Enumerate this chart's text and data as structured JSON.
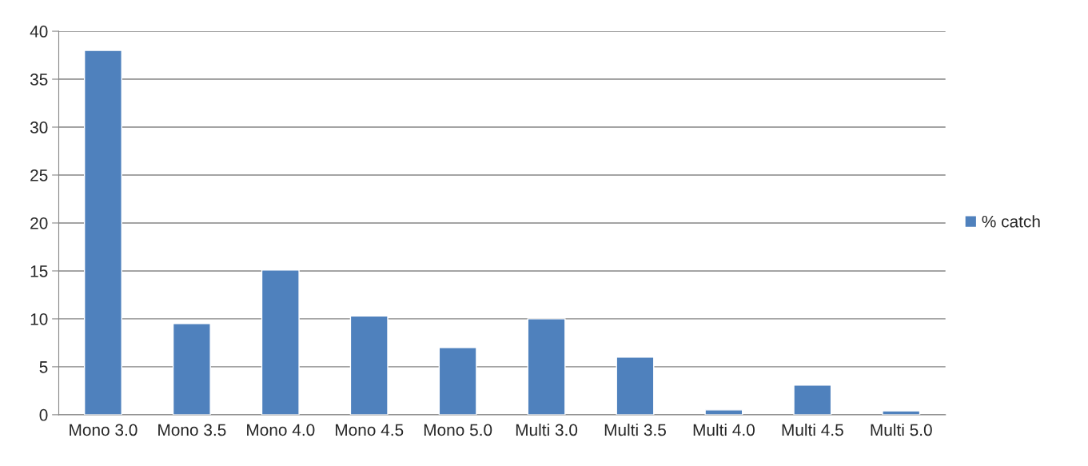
{
  "chart_data": {
    "type": "bar",
    "categories": [
      "Mono 3.0",
      "Mono 3.5",
      "Mono 4.0",
      "Mono 4.5",
      "Mono 5.0",
      "Multi 3.0",
      "Multi 3.5",
      "Multi 4.0",
      "Multi 4.5",
      "Multi 5.0"
    ],
    "series": [
      {
        "name": "% catch",
        "color": "#4f81bd",
        "values": [
          38.0,
          9.5,
          15.1,
          10.3,
          7.0,
          10.0,
          6.0,
          0.5,
          3.1,
          0.4
        ]
      }
    ],
    "ylim": [
      0,
      40
    ],
    "yticks": [
      0,
      5,
      10,
      15,
      20,
      25,
      30,
      35,
      40
    ],
    "grid": "y",
    "legend": "right"
  }
}
